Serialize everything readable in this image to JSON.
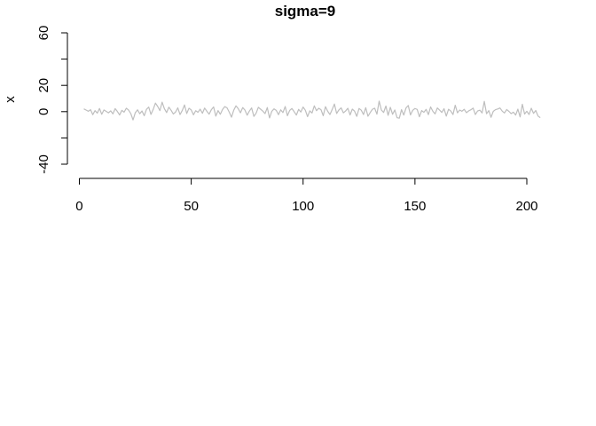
{
  "chart_data": {
    "type": "line",
    "title": "sigma=9",
    "xlabel": "",
    "ylabel": "x",
    "xlim": [
      1,
      200
    ],
    "ylim": [
      -40,
      60
    ],
    "x_ticks": [
      0,
      50,
      100,
      150,
      200
    ],
    "x_tick_labels": [
      "0",
      "50",
      "100",
      "150",
      "200"
    ],
    "y_ticks": [
      -40,
      -20,
      0,
      20,
      40,
      60
    ],
    "y_tick_labels": [
      "-40",
      "",
      "0",
      "20",
      "",
      "60"
    ],
    "grid": false,
    "colors": {
      "series": "#bebebe",
      "axis": "#000000"
    },
    "series": [
      {
        "x_start": 2,
        "x_step": 1,
        "values": [
          2.1,
          1.2,
          0.3,
          1.5,
          -2.3,
          0.8,
          -1.1,
          2.4,
          -2.0,
          1.3,
          0.2,
          -0.9,
          0.6,
          -1.7,
          2.3,
          0.1,
          -2.5,
          1.0,
          -0.4,
          2.6,
          1.2,
          -1.5,
          -6.3,
          -0.8,
          1.4,
          -1.6,
          0.5,
          -3.1,
          1.8,
          3.5,
          -2.1,
          1.7,
          6.5,
          4.0,
          0.8,
          7.2,
          2.3,
          -0.7,
          3.4,
          1.1,
          -1.8,
          -0.3,
          2.9,
          -2.2,
          0.9,
          5.1,
          -1.4,
          2.6,
          1.3,
          -2.4,
          0.7,
          -0.5,
          1.9,
          -1.2,
          2.7,
          0.3,
          -1.9,
          1.5,
          3.6,
          -3.4,
          0.8,
          -2.0,
          1.6,
          3.8,
          2.9,
          -0.4,
          -4.2,
          1.1,
          4.4,
          2.3,
          -0.9,
          3.1,
          1.2,
          -2.7,
          0.5,
          2.8,
          -3.6,
          -1.2,
          3.3,
          1.9,
          0.4,
          -1.5,
          3.1,
          -4.8,
          0.2,
          2.1,
          1.0,
          -2.3,
          1.4,
          -0.7,
          3.9,
          -3.1,
          0.9,
          2.4,
          0.0,
          -2.6,
          1.7,
          -0.3,
          3.5,
          1.1,
          -3.8,
          0.6,
          -1.0,
          4.4,
          0.7,
          2.6,
          1.5,
          -3.1,
          3.8,
          0.3,
          -2.2,
          1.6,
          5.8,
          -1.4,
          1.3,
          2.9,
          -0.9,
          0.5,
          2.6,
          -2.5,
          1.9,
          0.4,
          -3.6,
          2.4,
          1.1,
          -2.2,
          3.0,
          -3.5,
          -0.7,
          1.8,
          2.6,
          -1.9,
          8.0,
          1.2,
          -0.6,
          4.3,
          -2.8,
          3.3,
          -2.0,
          1.3,
          -4.6,
          -5.0,
          1.5,
          -2.6,
          2.8,
          4.7,
          -2.5,
          1.0,
          2.4,
          1.7,
          -3.9,
          0.8,
          -0.5,
          1.7,
          -2.3,
          3.6,
          0.3,
          -1.7,
          2.8,
          1.2,
          -0.6,
          2.2,
          -3.4,
          1.8,
          0.5,
          -2.2,
          4.9,
          -0.9,
          1.2,
          0.3,
          1.8,
          -0.8,
          0.6,
          1.4,
          2.7,
          -2.2,
          0.5,
          1.1,
          -1.0,
          7.8,
          -1.6,
          0.8,
          -4.3,
          0.2,
          1.5,
          2.0,
          2.8,
          0.4,
          -1.0,
          1.6,
          0.2,
          -1.5,
          -0.4,
          -2.6,
          1.9,
          -4.0,
          5.6,
          -1.8,
          0.3,
          -2.2,
          2.6,
          -1.3,
          0.9,
          -3.3,
          -4.6
        ]
      }
    ]
  }
}
